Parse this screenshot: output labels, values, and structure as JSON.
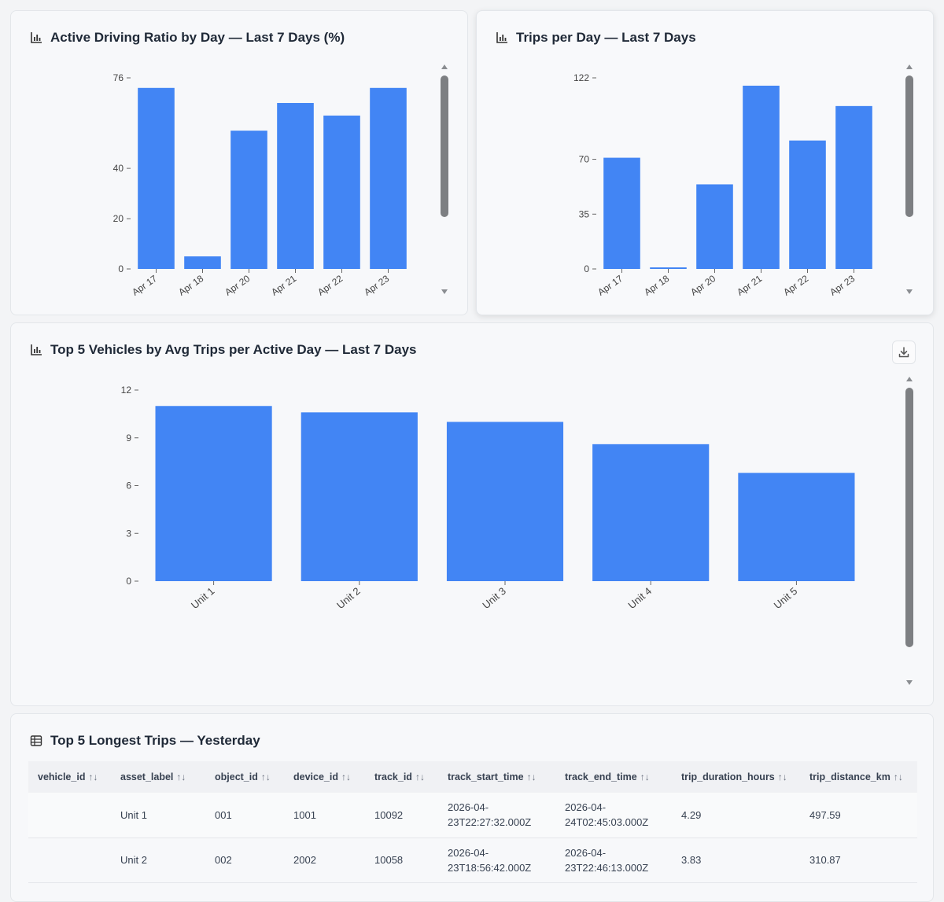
{
  "cards": {
    "driving_ratio": {
      "title": "Active Driving Ratio by Day — Last 7 Days (%)"
    },
    "trips_per_day": {
      "title": "Trips per Day — Last 7 Days"
    },
    "top_vehicles": {
      "title": "Top 5 Vehicles by Avg Trips per Active Day — Last 7 Days",
      "download_icon": "download-icon"
    },
    "longest_trips": {
      "title": "Top 5 Longest Trips — Yesterday"
    }
  },
  "chart_data": [
    {
      "type": "bar",
      "title": "Active Driving Ratio by Day — Last 7 Days (%)",
      "categories": [
        "Apr 17",
        "Apr 18",
        "Apr 20",
        "Apr 21",
        "Apr 22",
        "Apr 23"
      ],
      "values": [
        72,
        5,
        55,
        66,
        61,
        72
      ],
      "yticks": [
        0,
        20,
        40,
        76
      ],
      "ylim": [
        0,
        76
      ],
      "color": "#4285f4"
    },
    {
      "type": "bar",
      "title": "Trips per Day — Last 7 Days",
      "categories": [
        "Apr 17",
        "Apr 18",
        "Apr 20",
        "Apr 21",
        "Apr 22",
        "Apr 23"
      ],
      "values": [
        71,
        1,
        54,
        117,
        82,
        104
      ],
      "yticks": [
        0,
        35,
        70,
        122
      ],
      "ylim": [
        0,
        122
      ],
      "color": "#4285f4"
    },
    {
      "type": "bar",
      "title": "Top 5 Vehicles by Avg Trips per Active Day — Last 7 Days",
      "categories": [
        "Unit 1",
        "Unit 2",
        "Unit 3",
        "Unit 4",
        "Unit 5"
      ],
      "values": [
        11,
        10.6,
        10,
        8.6,
        6.8
      ],
      "yticks": [
        0,
        3,
        6,
        9,
        12
      ],
      "ylim": [
        0,
        12
      ],
      "color": "#4285f4"
    }
  ],
  "table": {
    "columns": [
      "vehicle_id",
      "asset_label",
      "object_id",
      "device_id",
      "track_id",
      "track_start_time",
      "track_end_time",
      "trip_duration_hours",
      "trip_distance_km"
    ],
    "sort_glyph": "↑↓",
    "rows": [
      {
        "vehicle_id": "",
        "asset_label": "Unit 1",
        "object_id": "001",
        "device_id": "1001",
        "track_id": "10092",
        "track_start_time": "2026-04-23T22:27:32.000Z",
        "track_end_time": "2026-04-24T02:45:03.000Z",
        "trip_duration_hours": "4.29",
        "trip_distance_km": "497.59"
      },
      {
        "vehicle_id": "",
        "asset_label": "Unit 2",
        "object_id": "002",
        "device_id": "2002",
        "track_id": "10058",
        "track_start_time": "2026-04-23T18:56:42.000Z",
        "track_end_time": "2026-04-23T22:46:13.000Z",
        "trip_duration_hours": "3.83",
        "trip_distance_km": "310.87"
      }
    ]
  }
}
